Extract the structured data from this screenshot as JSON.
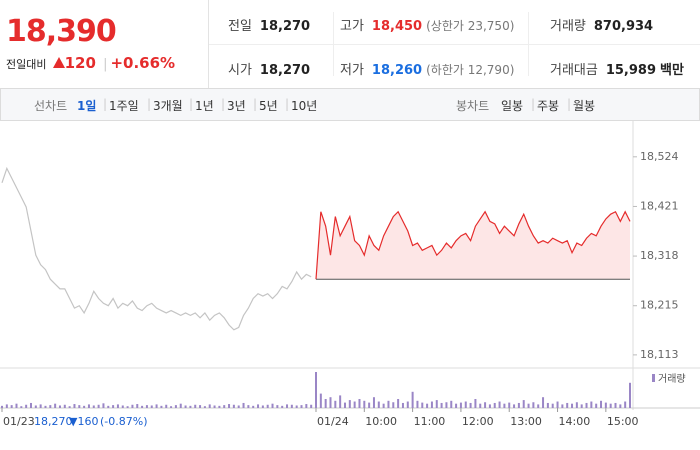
{
  "header": {
    "price": "18,390",
    "change_label": "전일대비",
    "change": "120",
    "change_pct": "+0.66%",
    "info": [
      [
        {
          "label": "전일",
          "value": "18,270"
        },
        {
          "label": "고가",
          "value": "18,450",
          "note": "(상한가 23,750)"
        },
        {
          "label": "거래량",
          "value": "870,934"
        }
      ],
      [
        {
          "label": "시가",
          "value": "18,270"
        },
        {
          "label": "저가",
          "value": "18,260",
          "note": "(하한가 12,790)"
        },
        {
          "label": "거래대금",
          "value": "15,989",
          "unit": "백만"
        }
      ]
    ]
  },
  "tabs": {
    "line_label": "선차트",
    "line_periods": [
      "1일",
      "1주일",
      "3개월",
      "1년",
      "3년",
      "5년",
      "10년"
    ],
    "candle_label": "봉차트",
    "candle_periods": [
      "일봉",
      "주봉",
      "월봉"
    ]
  },
  "prev_day": {
    "close": "18,270",
    "change": "▼160",
    "pct": "(-0.87%)"
  },
  "chart_data": {
    "type": "line",
    "x": [
      0,
      1,
      2,
      3,
      4,
      5,
      6,
      7,
      8,
      9,
      10,
      11,
      12,
      13,
      14,
      15,
      16,
      17,
      18,
      19,
      20,
      21,
      22,
      23,
      24,
      25,
      26,
      27,
      28,
      29,
      30,
      31,
      32,
      33,
      34,
      35,
      36,
      37,
      38,
      39,
      40,
      41,
      42,
      43,
      44,
      45,
      46,
      47,
      48,
      49,
      50,
      51,
      52,
      53,
      54,
      55,
      56,
      57,
      58,
      59,
      60,
      61,
      62,
      63,
      64,
      65,
      66,
      67,
      68,
      69,
      70,
      71,
      72,
      73,
      74,
      75,
      76,
      77,
      78,
      79,
      80,
      81,
      82,
      83,
      84,
      85,
      86,
      87,
      88,
      89,
      90,
      91,
      92,
      93,
      94,
      95,
      96,
      97,
      98,
      99,
      100,
      101,
      102,
      103,
      104,
      105,
      106,
      107,
      108,
      109,
      110,
      111,
      112,
      113,
      114,
      115,
      116,
      117,
      118,
      119,
      120,
      121,
      122,
      123,
      124,
      125,
      126,
      127,
      128,
      129,
      130
    ],
    "xlim": [
      0,
      130
    ],
    "xticks": [
      {
        "value": 0,
        "label": "01/23"
      },
      {
        "value": 65,
        "label": "01/24"
      },
      {
        "value": 75,
        "label": "10:00"
      },
      {
        "value": 85,
        "label": "11:00"
      },
      {
        "value": 95,
        "label": "12:00"
      },
      {
        "value": 105,
        "label": "13:00"
      },
      {
        "value": 115,
        "label": "14:00"
      },
      {
        "value": 125,
        "label": "15:00"
      }
    ],
    "ylim": [
      18092,
      18590
    ],
    "yticks": [
      {
        "value": 18113,
        "label": "18,113"
      },
      {
        "value": 18215,
        "label": "18,215"
      },
      {
        "value": 18318,
        "label": "18,318"
      },
      {
        "value": 18421,
        "label": "18,421"
      },
      {
        "value": 18524,
        "label": "18,524"
      }
    ],
    "reference_value": 18270,
    "series": [
      {
        "color": "#c4c4c4",
        "values": [
          18470,
          18500,
          18480,
          18460,
          18440,
          18420,
          18370,
          18320,
          18300,
          18290,
          18270,
          18260,
          18250,
          18250,
          18230,
          18210,
          18215,
          18200,
          18220,
          18245,
          18230,
          18220,
          18215,
          18230,
          18210,
          18220,
          18215,
          18225,
          18210,
          18205,
          18215,
          18220,
          18210,
          18205,
          18200,
          18205,
          18200,
          18195,
          18200,
          18195,
          18200,
          18190,
          18200,
          18185,
          18195,
          18200,
          18190,
          18175,
          18165,
          18170,
          18195,
          18210,
          18230,
          18240,
          18235,
          18240,
          18230,
          18240,
          18255,
          18250,
          18265,
          18285,
          18270,
          18280,
          18275,
          null,
          null,
          null,
          null,
          null,
          null,
          null,
          null,
          null,
          null,
          null,
          null,
          null,
          null,
          null,
          null,
          null,
          null,
          null,
          null,
          null,
          null,
          null,
          null,
          null,
          null,
          null,
          null,
          null,
          null,
          null,
          null,
          null,
          null,
          null,
          null,
          null,
          null,
          null,
          null,
          null,
          null,
          null,
          null,
          null,
          null,
          null,
          null,
          null,
          null,
          null,
          null,
          null,
          null,
          null,
          null,
          null,
          null,
          null,
          null,
          null,
          null,
          null,
          null,
          null,
          null
        ]
      },
      {
        "color": "#e52c2c",
        "fill": "#fde6e6",
        "values": [
          null,
          null,
          null,
          null,
          null,
          null,
          null,
          null,
          null,
          null,
          null,
          null,
          null,
          null,
          null,
          null,
          null,
          null,
          null,
          null,
          null,
          null,
          null,
          null,
          null,
          null,
          null,
          null,
          null,
          null,
          null,
          null,
          null,
          null,
          null,
          null,
          null,
          null,
          null,
          null,
          null,
          null,
          null,
          null,
          null,
          null,
          null,
          null,
          null,
          null,
          null,
          null,
          null,
          null,
          null,
          null,
          null,
          null,
          null,
          null,
          null,
          null,
          null,
          null,
          null,
          18270,
          18410,
          18380,
          18320,
          18400,
          18360,
          18380,
          18400,
          18350,
          18340,
          18320,
          18360,
          18340,
          18330,
          18360,
          18380,
          18400,
          18410,
          18390,
          18370,
          18340,
          18345,
          18330,
          18335,
          18340,
          18320,
          18330,
          18345,
          18335,
          18350,
          18360,
          18365,
          18350,
          18380,
          18395,
          18410,
          18390,
          18385,
          18365,
          18380,
          18370,
          18360,
          18385,
          18405,
          18380,
          18360,
          18345,
          18350,
          18345,
          18355,
          18350,
          18345,
          18350,
          18325,
          18345,
          18340,
          18355,
          18365,
          18360,
          18380,
          18395,
          18405,
          18410,
          18390,
          18410,
          18390
        ]
      }
    ],
    "volume": {
      "name": "거래량",
      "color": "#9a86c6",
      "ylim": [
        0,
        100
      ],
      "values": [
        6,
        10,
        8,
        12,
        5,
        9,
        14,
        7,
        10,
        6,
        8,
        12,
        7,
        9,
        5,
        11,
        8,
        6,
        10,
        7,
        9,
        13,
        6,
        8,
        10,
        7,
        5,
        9,
        11,
        6,
        8,
        7,
        10,
        6,
        9,
        5,
        8,
        12,
        7,
        6,
        9,
        8,
        5,
        10,
        7,
        6,
        8,
        11,
        9,
        7,
        14,
        8,
        6,
        10,
        7,
        9,
        12,
        8,
        6,
        10,
        9,
        7,
        8,
        11,
        9,
        100,
        40,
        25,
        30,
        20,
        35,
        15,
        22,
        18,
        25,
        20,
        15,
        30,
        18,
        12,
        20,
        16,
        25,
        14,
        18,
        45,
        20,
        15,
        12,
        18,
        22,
        14,
        16,
        20,
        12,
        15,
        18,
        14,
        25,
        12,
        16,
        10,
        14,
        18,
        12,
        15,
        10,
        14,
        22,
        12,
        16,
        10,
        30,
        14,
        12,
        18,
        10,
        14,
        12,
        16,
        10,
        14,
        18,
        12,
        20,
        15,
        12,
        14,
        10,
        18,
        70
      ]
    }
  }
}
